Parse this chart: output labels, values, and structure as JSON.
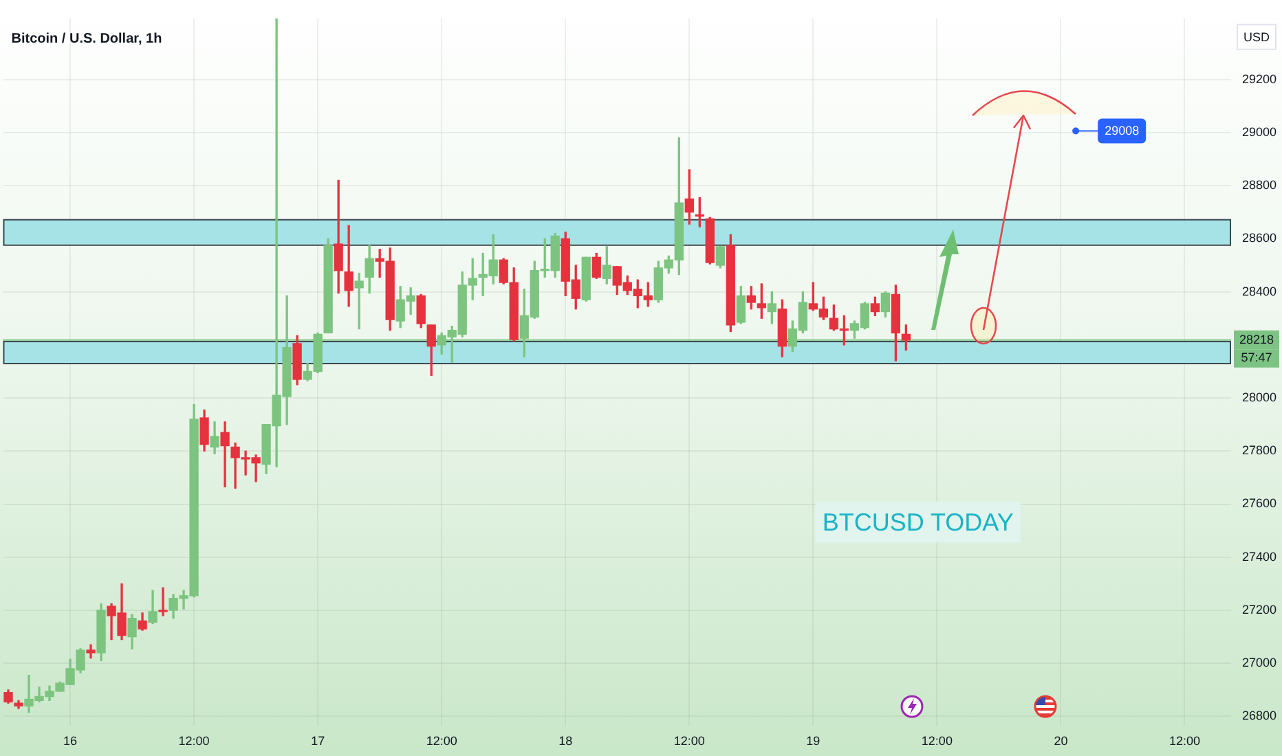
{
  "chart_data": {
    "type": "candlestick",
    "title": "Bitcoin / U.S. Dollar, 1h",
    "ylabel": "USD",
    "categories": [
      null,
      null,
      null,
      null,
      null,
      null,
      "16",
      null,
      null,
      null,
      null,
      null,
      null,
      null,
      null,
      null,
      null,
      null,
      "12:00",
      null,
      null,
      null,
      null,
      null,
      null,
      null,
      null,
      null,
      null,
      null,
      "17",
      null,
      null,
      null,
      null,
      null,
      null,
      null,
      null,
      null,
      null,
      null,
      "12:00",
      null,
      null,
      null,
      null,
      null,
      null,
      null,
      null,
      null,
      null,
      null,
      "18",
      null,
      null,
      null,
      null,
      null,
      null,
      null,
      null,
      null,
      null,
      null,
      "12:00",
      null,
      null,
      null,
      null,
      null,
      null,
      null,
      null,
      null,
      null,
      null,
      "19",
      null,
      null,
      null,
      null,
      null,
      null,
      null,
      null,
      null,
      null,
      null,
      "12:00",
      null,
      null,
      null,
      null,
      null,
      null,
      null,
      null,
      null,
      null,
      null,
      "20",
      null,
      null,
      null,
      null,
      null,
      null,
      null,
      null,
      null,
      null,
      null,
      "12:00",
      null,
      null,
      null,
      null
    ],
    "ohlc": [
      [
        26890,
        26900,
        26850,
        26855
      ],
      [
        26850,
        26860,
        26830,
        26840
      ],
      [
        26840,
        26955,
        26815,
        26865
      ],
      [
        26860,
        26910,
        26855,
        26875
      ],
      [
        26875,
        26915,
        26860,
        26895
      ],
      [
        26895,
        26930,
        26895,
        26925
      ],
      [
        26920,
        27015,
        26920,
        26980
      ],
      [
        26975,
        27055,
        26965,
        27050
      ],
      [
        27050,
        27070,
        27020,
        27040
      ],
      [
        27040,
        27225,
        27010,
        27200
      ],
      [
        27215,
        27225,
        27090,
        27180
      ],
      [
        27190,
        27300,
        27090,
        27105
      ],
      [
        27100,
        27185,
        27055,
        27170
      ],
      [
        27160,
        27190,
        27125,
        27130
      ],
      [
        27155,
        27275,
        27150,
        27195
      ],
      [
        27200,
        27285,
        27180,
        27195
      ],
      [
        27200,
        27260,
        27170,
        27245
      ],
      [
        27245,
        27275,
        27205,
        27255
      ],
      [
        27255,
        27975,
        27250,
        27920
      ],
      [
        27925,
        27955,
        27800,
        27825
      ],
      [
        27815,
        27910,
        27790,
        27855
      ],
      [
        27870,
        27910,
        27665,
        27820
      ],
      [
        27815,
        27830,
        27660,
        27775
      ],
      [
        27775,
        27800,
        27710,
        27770
      ],
      [
        27775,
        27785,
        27685,
        27755
      ],
      [
        27750,
        27900,
        27715,
        27900
      ],
      [
        27895,
        29430,
        27740,
        28010
      ],
      [
        28005,
        28385,
        27900,
        28190
      ],
      [
        28205,
        28235,
        28050,
        28070
      ],
      [
        28070,
        28130,
        28065,
        28100
      ],
      [
        28100,
        28245,
        28095,
        28240
      ],
      [
        28245,
        28600,
        28245,
        28575
      ],
      [
        28580,
        28820,
        28395,
        28480
      ],
      [
        28475,
        28650,
        28345,
        28405
      ],
      [
        28415,
        28470,
        28260,
        28440
      ],
      [
        28455,
        28575,
        28395,
        28525
      ],
      [
        28525,
        28560,
        28455,
        28515
      ],
      [
        28515,
        28565,
        28255,
        28295
      ],
      [
        28290,
        28420,
        28265,
        28370
      ],
      [
        28365,
        28415,
        28315,
        28385
      ],
      [
        28385,
        28390,
        28265,
        28280
      ],
      [
        28275,
        28275,
        28085,
        28195
      ],
      [
        28200,
        28245,
        28165,
        28235
      ],
      [
        28230,
        28270,
        28135,
        28255
      ],
      [
        28240,
        28475,
        28230,
        28425
      ],
      [
        28425,
        28525,
        28370,
        28450
      ],
      [
        28455,
        28545,
        28385,
        28465
      ],
      [
        28460,
        28615,
        28430,
        28520
      ],
      [
        28520,
        28525,
        28430,
        28435
      ],
      [
        28435,
        28490,
        28215,
        28220
      ],
      [
        28225,
        28410,
        28155,
        28310
      ],
      [
        28305,
        28515,
        28300,
        28480
      ],
      [
        28480,
        28600,
        28455,
        28485
      ],
      [
        28480,
        28620,
        28455,
        28610
      ],
      [
        28600,
        28625,
        28385,
        28440
      ],
      [
        28445,
        28500,
        28335,
        28375
      ],
      [
        28370,
        28530,
        28365,
        28530
      ],
      [
        28530,
        28545,
        28450,
        28455
      ],
      [
        28450,
        28570,
        28430,
        28500
      ],
      [
        28495,
        28495,
        28390,
        28425
      ],
      [
        28435,
        28460,
        28390,
        28405
      ],
      [
        28410,
        28445,
        28340,
        28385
      ],
      [
        28385,
        28435,
        28345,
        28370
      ],
      [
        28370,
        28515,
        28360,
        28490
      ],
      [
        28490,
        28535,
        28470,
        28520
      ],
      [
        28520,
        28980,
        28465,
        28735
      ],
      [
        28750,
        28860,
        28655,
        28700
      ],
      [
        28690,
        28755,
        28645,
        28685
      ],
      [
        28675,
        28680,
        28505,
        28510
      ],
      [
        28500,
        28570,
        28490,
        28570
      ],
      [
        28575,
        28615,
        28250,
        28275
      ],
      [
        28285,
        28420,
        28280,
        28385
      ],
      [
        28385,
        28420,
        28335,
        28360
      ],
      [
        28355,
        28430,
        28300,
        28340
      ],
      [
        28325,
        28400,
        28280,
        28355
      ],
      [
        28335,
        28370,
        28155,
        28195
      ],
      [
        28195,
        28290,
        28175,
        28260
      ],
      [
        28255,
        28400,
        28245,
        28360
      ],
      [
        28355,
        28435,
        28330,
        28335
      ],
      [
        28335,
        28380,
        28295,
        28305
      ],
      [
        28300,
        28350,
        28255,
        28260
      ],
      [
        28260,
        28310,
        28200,
        28255
      ],
      [
        28255,
        28290,
        28225,
        28280
      ],
      [
        28265,
        28360,
        28260,
        28355
      ],
      [
        28355,
        28380,
        28310,
        28325
      ],
      [
        28325,
        28400,
        28305,
        28395
      ],
      [
        28390,
        28425,
        28140,
        28245
      ],
      [
        28240,
        28275,
        28180,
        28218
      ],
      null,
      null,
      null,
      null,
      null,
      null,
      null,
      null,
      null,
      null,
      null,
      null,
      null,
      null,
      null,
      null,
      null,
      null,
      null,
      null,
      null,
      null,
      null,
      null,
      null,
      null,
      null,
      null,
      null,
      null,
      null
    ],
    "colors": [
      "#e5323e",
      "#e5323e",
      "#7cc47f",
      "#7cc47f",
      "#7cc47f",
      "#7cc47f",
      "#7cc47f",
      "#7cc47f",
      "#e5323e",
      "#7cc47f",
      "#e5323e",
      "#e5323e",
      "#7cc47f",
      "#e5323e",
      "#7cc47f",
      "#e5323e",
      "#7cc47f",
      "#7cc47f",
      "#7cc47f",
      "#e5323e",
      "#7cc47f",
      "#e5323e",
      "#e5323e",
      "#e5323e",
      "#e5323e",
      "#7cc47f",
      "#7cc47f",
      "#7cc47f",
      "#e5323e",
      "#7cc47f",
      "#7cc47f",
      "#7cc47f",
      "#e5323e",
      "#e5323e",
      "#7cc47f",
      "#7cc47f",
      "#e5323e",
      "#e5323e",
      "#7cc47f",
      "#7cc47f",
      "#e5323e",
      "#e5323e",
      "#7cc47f",
      "#7cc47f",
      "#7cc47f",
      "#7cc47f",
      "#7cc47f",
      "#7cc47f",
      "#e5323e",
      "#e5323e",
      "#7cc47f",
      "#7cc47f",
      "#7cc47f",
      "#7cc47f",
      "#e5323e",
      "#e5323e",
      "#7cc47f",
      "#e5323e",
      "#7cc47f",
      "#e5323e",
      "#e5323e",
      "#e5323e",
      "#e5323e",
      "#7cc47f",
      "#7cc47f",
      "#7cc47f",
      "#e5323e",
      "#e5323e",
      "#e5323e",
      "#7cc47f",
      "#e5323e",
      "#7cc47f",
      "#e5323e",
      "#e5323e",
      "#7cc47f",
      "#e5323e",
      "#7cc47f",
      "#7cc47f",
      "#e5323e",
      "#e5323e",
      "#e5323e",
      "#e5323e",
      "#7cc47f",
      "#7cc47f",
      "#e5323e",
      "#7cc47f",
      "#e5323e",
      "#e5323e",
      null,
      null,
      null,
      null,
      null,
      null,
      null,
      null,
      null,
      null,
      null,
      null,
      null,
      null,
      null,
      null,
      null,
      null,
      null,
      null,
      null,
      null,
      null,
      null,
      null,
      null,
      null,
      null,
      null,
      null,
      null
    ],
    "ylim": [
      26765,
      29430
    ],
    "yticks": [
      26800,
      27000,
      27200,
      27400,
      27600,
      27800,
      28000,
      28400,
      28600,
      28800,
      29000,
      29200
    ],
    "grid": true,
    "bands": [
      {
        "axis": "y",
        "from": 28578,
        "to": 28674,
        "color": "#a6e3e6"
      },
      {
        "axis": "y",
        "from": 28132,
        "to": 28215,
        "color": "#a6e3e6"
      }
    ],
    "ref_lines": [
      {
        "axis": "y",
        "value": 28218,
        "label": "28218",
        "color": "#7dc383"
      }
    ],
    "annotations": [
      "BTCUSD TODAY",
      "57:47",
      "29008"
    ]
  }
}
